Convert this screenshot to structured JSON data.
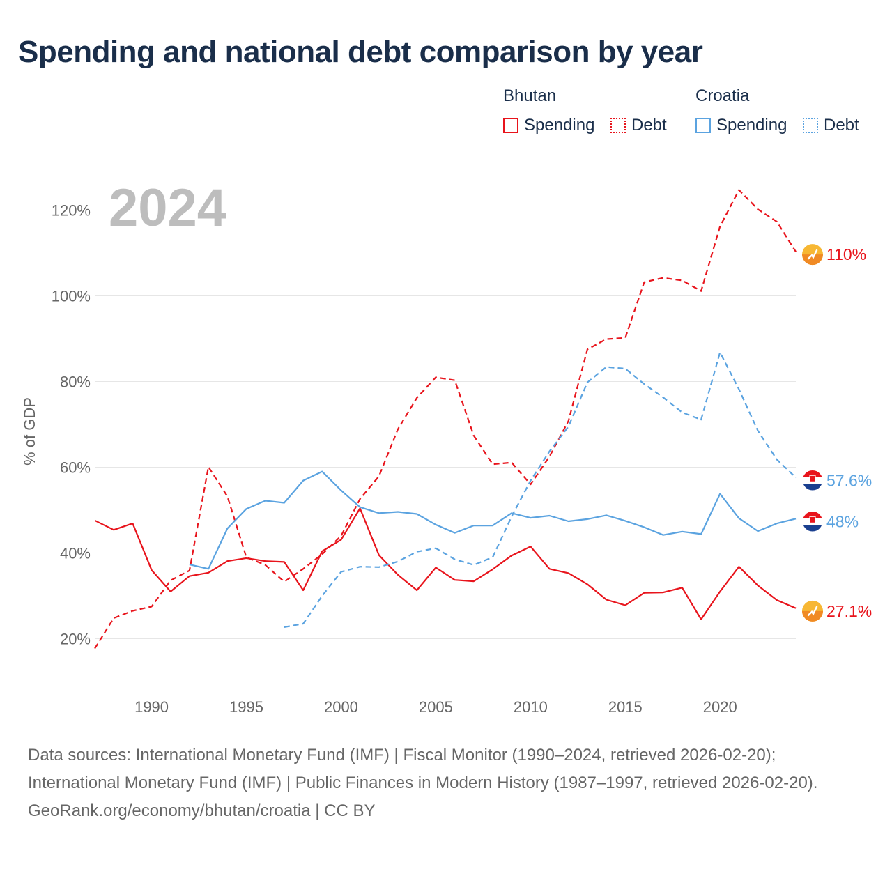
{
  "title": "Spending and national debt comparison by year",
  "legend": {
    "groups": [
      {
        "name": "Bhutan",
        "color": "#e8141c",
        "items": [
          {
            "label": "Spending",
            "style": "solid"
          },
          {
            "label": "Debt",
            "style": "dotted"
          }
        ]
      },
      {
        "name": "Croatia",
        "color": "#5ba3e0",
        "items": [
          {
            "label": "Spending",
            "style": "solid"
          },
          {
            "label": "Debt",
            "style": "dotted"
          }
        ]
      }
    ]
  },
  "footer": {
    "sources": "Data sources: International Monetary Fund (IMF) | Fiscal Monitor (1990–2024, retrieved 2026-02-20); International Monetary Fund (IMF) | Public Finances in Modern History (1987–1997, retrieved 2026-02-20).",
    "credit": "GeoRank.org/economy/bhutan/croatia | CC BY"
  },
  "chart_data": {
    "type": "line",
    "year_label": "2024",
    "ylabel": "% of GDP",
    "xlim": [
      1987,
      2024
    ],
    "ylim": [
      10,
      130
    ],
    "x_ticks": [
      1990,
      1995,
      2000,
      2005,
      2010,
      2015,
      2020
    ],
    "y_ticks": [
      20,
      40,
      60,
      80,
      100,
      120
    ],
    "y_tick_labels": [
      "20%",
      "40%",
      "60%",
      "80%",
      "100%",
      "120%"
    ],
    "colors": {
      "bhutan": "#e8141c",
      "croatia": "#5ba3e0"
    },
    "series": [
      {
        "name": "Bhutan Spending",
        "country": "bhutan",
        "dashed": false,
        "end_label": "27.1%",
        "x": [
          1987,
          1988,
          1989,
          1990,
          1991,
          1992,
          1993,
          1994,
          1995,
          1996,
          1997,
          1998,
          1999,
          2000,
          2001,
          2002,
          2003,
          2004,
          2005,
          2006,
          2007,
          2008,
          2009,
          2010,
          2011,
          2012,
          2013,
          2014,
          2015,
          2016,
          2017,
          2018,
          2019,
          2020,
          2021,
          2022,
          2023,
          2024
        ],
        "values": [
          47.6,
          45.4,
          46.9,
          36.0,
          31.0,
          34.6,
          35.4,
          38.1,
          38.8,
          38.1,
          37.9,
          31.3,
          40.4,
          43.1,
          50.4,
          39.5,
          34.9,
          31.3,
          36.6,
          33.7,
          33.4,
          36.2,
          39.4,
          41.5,
          36.3,
          35.3,
          32.7,
          29.1,
          27.8,
          30.7,
          30.8,
          31.9,
          24.5,
          31.0,
          36.8,
          32.4,
          29.0,
          27.1
        ]
      },
      {
        "name": "Bhutan Debt",
        "country": "bhutan",
        "dashed": true,
        "end_label": "110%",
        "x": [
          1987,
          1988,
          1989,
          1990,
          1991,
          1992,
          1993,
          1994,
          1995,
          1996,
          1997,
          1998,
          1999,
          2000,
          2001,
          2002,
          2003,
          2004,
          2005,
          2006,
          2007,
          2008,
          2009,
          2010,
          2011,
          2012,
          2013,
          2014,
          2015,
          2016,
          2017,
          2018,
          2019,
          2020,
          2021,
          2022,
          2023,
          2024
        ],
        "values": [
          17.7,
          24.8,
          26.5,
          27.5,
          33.6,
          35.9,
          60.1,
          53.2,
          39.0,
          37.2,
          33.3,
          36.3,
          39.7,
          44.0,
          52.6,
          57.9,
          68.9,
          76.2,
          81.0,
          80.3,
          67.4,
          60.7,
          61.1,
          56.0,
          62.5,
          70.8,
          87.5,
          89.9,
          90.2,
          103.2,
          104.2,
          103.6,
          101.1,
          116.2,
          124.7,
          120.2,
          117.3,
          110.3
        ]
      },
      {
        "name": "Croatia Spending",
        "country": "croatia",
        "dashed": false,
        "end_label": "48%",
        "x": [
          1992,
          1993,
          1994,
          1995,
          1996,
          1997,
          1998,
          1999,
          2000,
          2001,
          2002,
          2003,
          2004,
          2005,
          2006,
          2007,
          2008,
          2009,
          2010,
          2011,
          2012,
          2013,
          2014,
          2015,
          2016,
          2017,
          2018,
          2019,
          2020,
          2021,
          2022,
          2023,
          2024
        ],
        "values": [
          37.3,
          36.3,
          45.7,
          50.3,
          52.2,
          51.7,
          56.9,
          59.0,
          54.6,
          50.7,
          49.3,
          49.6,
          49.1,
          46.6,
          44.7,
          46.4,
          46.4,
          49.3,
          48.2,
          48.7,
          47.4,
          47.9,
          48.8,
          47.5,
          46.0,
          44.2,
          45.0,
          44.4,
          53.8,
          48.1,
          45.1,
          46.9,
          48.0
        ]
      },
      {
        "name": "Croatia Debt",
        "country": "croatia",
        "dashed": true,
        "end_label": "57.6%",
        "x": [
          1997,
          1998,
          1999,
          2000,
          2001,
          2002,
          2003,
          2004,
          2005,
          2006,
          2007,
          2008,
          2009,
          2010,
          2011,
          2012,
          2013,
          2014,
          2015,
          2016,
          2017,
          2018,
          2019,
          2020,
          2021,
          2022,
          2023,
          2024
        ],
        "values": [
          22.7,
          23.5,
          30.0,
          35.6,
          36.8,
          36.7,
          38.0,
          40.3,
          41.1,
          38.5,
          37.2,
          39.0,
          48.5,
          56.9,
          63.7,
          69.5,
          79.8,
          83.4,
          83.0,
          79.4,
          76.3,
          72.8,
          71.1,
          86.8,
          78.2,
          68.5,
          61.8,
          57.6
        ]
      }
    ]
  }
}
